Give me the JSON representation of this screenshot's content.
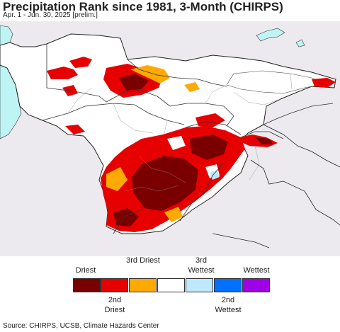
{
  "header": {
    "title": "Precipitation Rank since 1981, 3-Month (CHIRPS)",
    "subtitle": "Apr. 1 - Jun. 30, 2025 [prelim.]"
  },
  "legend": {
    "items": [
      {
        "top_label": "Driest",
        "bottom_label": "",
        "color": "#7a0000"
      },
      {
        "top_label": "",
        "bottom_label": "2nd Driest",
        "color": "#e60000"
      },
      {
        "top_label": "3rd Driest",
        "bottom_label": "",
        "color": "#ffaa00"
      },
      {
        "top_label": "",
        "bottom_label": "",
        "color": "#ffffff"
      },
      {
        "top_label": "3rd Wettest",
        "bottom_label": "",
        "color": "#bee8ff"
      },
      {
        "top_label": "",
        "bottom_label": "2nd Wettest",
        "color": "#0070ff"
      },
      {
        "top_label": "Wettest",
        "bottom_label": "",
        "color": "#a000e6"
      }
    ]
  },
  "map": {
    "water_color": "#bff4f4",
    "outside_color": "#eceaee",
    "border_color": "#222222"
  },
  "footer": {
    "source": "Source: CHIRPS, UCSB, Climate Hazards Center"
  }
}
